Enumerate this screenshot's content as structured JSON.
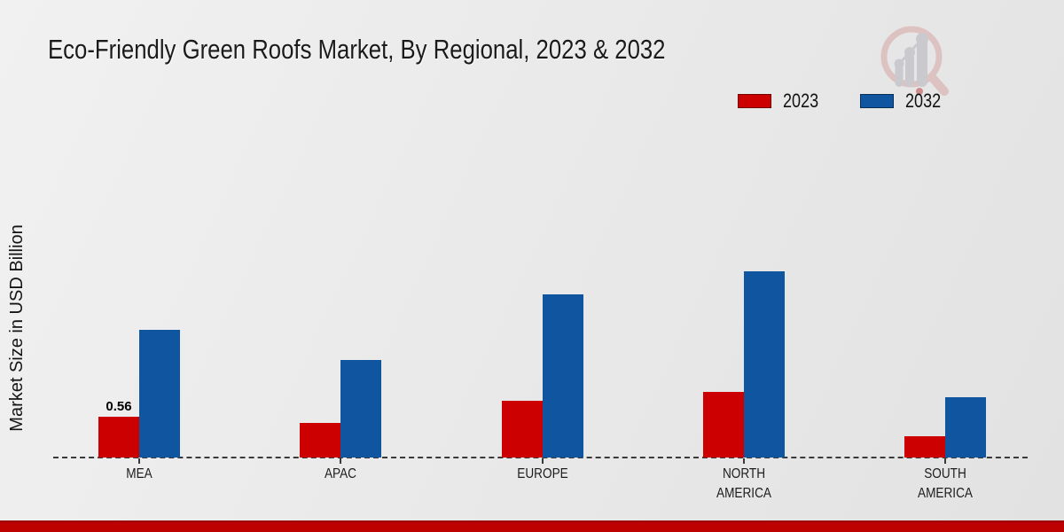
{
  "title": "Eco-Friendly Green Roofs Market, By Regional, 2023 & 2032",
  "ylabel": "Market Size in USD Billion",
  "legend": {
    "items": [
      {
        "label": "2023",
        "color": "#cc0000"
      },
      {
        "label": "2032",
        "color": "#10559f"
      }
    ],
    "position": "top-right"
  },
  "colors": {
    "series_2023": "#cc0000",
    "series_2032": "#10559f",
    "background": "#e9e9e9",
    "bottom_strip": "#bd0000",
    "axis": "#3a3a3a"
  },
  "icons": {
    "logo": "magnifier-growth-chart-watermark-icon"
  },
  "chart_data": {
    "type": "bar",
    "categories": [
      "MEA",
      "APAC",
      "EUROPE",
      "NORTH AMERICA",
      "SOUTH AMERICA"
    ],
    "series": [
      {
        "name": "2023",
        "color": "#cc0000",
        "values": [
          0.56,
          0.47,
          0.78,
          0.9,
          0.29
        ]
      },
      {
        "name": "2032",
        "color": "#10559f",
        "values": [
          1.75,
          1.34,
          2.24,
          2.56,
          0.83
        ]
      }
    ],
    "title": "Eco-Friendly Green Roofs Market, By Regional, 2023 & 2032",
    "xlabel": "",
    "ylabel": "Market Size in USD Billion",
    "ylim": [
      0,
      3
    ],
    "grid": false,
    "legend_position": "top-right",
    "baseline_style": "dashed",
    "annotations": [
      {
        "category": "MEA",
        "series": "2023",
        "text": "0.56"
      }
    ]
  }
}
